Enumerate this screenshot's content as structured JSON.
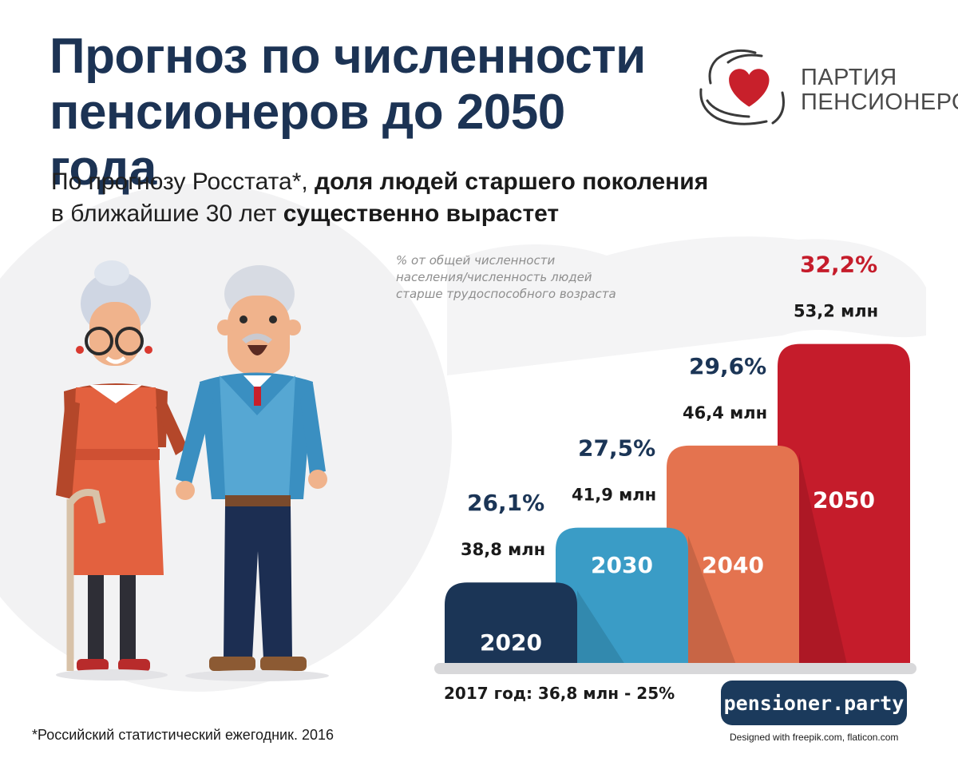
{
  "header": {
    "title_line1": "Прогноз по численности",
    "title_line2": "пенсионеров до 2050 года"
  },
  "subtitle": {
    "line1_normal": "По прогнозу Росстата*, ",
    "line1_bold": "доля людей старшего поколения",
    "line2_normal": "в ближайшие 30 лет ",
    "line2_bold": "существенно вырастет"
  },
  "logo": {
    "line1": "ПАРТИЯ",
    "line2": "ПЕНСИОНЕРОВ",
    "icon": "heart-in-hands-icon",
    "heart_color": "#c8202b"
  },
  "chart_data": {
    "type": "bar",
    "note_line1": "% от общей численности",
    "note_line2": "населения/численность людей",
    "note_line3": "старше трудоспособного возраста",
    "categories": [
      "2020",
      "2030",
      "2040",
      "2050"
    ],
    "values_percent": [
      26.1,
      27.5,
      29.6,
      32.2
    ],
    "values_mln": [
      38.8,
      41.9,
      46.4,
      53.2
    ],
    "percent_labels": [
      "26,1%",
      "27,5%",
      "29,6%",
      "32,2%"
    ],
    "mln_labels": [
      "38,8 млн",
      "41,9 млн",
      "46,4 млн",
      "53,2 млн"
    ],
    "colors": [
      "#1b3556",
      "#3a9cc6",
      "#e4734f",
      "#c51c2b"
    ],
    "percent_label_colors": [
      "#1b3556",
      "#1b3556",
      "#1b3556",
      "#c51c2b"
    ],
    "baseline_note": "2017 год: 36,8 млн - 25%"
  },
  "footer": {
    "website": "pensioner.party",
    "footnote": "*Российский статистический ежегодник. 2016",
    "credits": "Designed with freepik.com, flaticon.com"
  }
}
